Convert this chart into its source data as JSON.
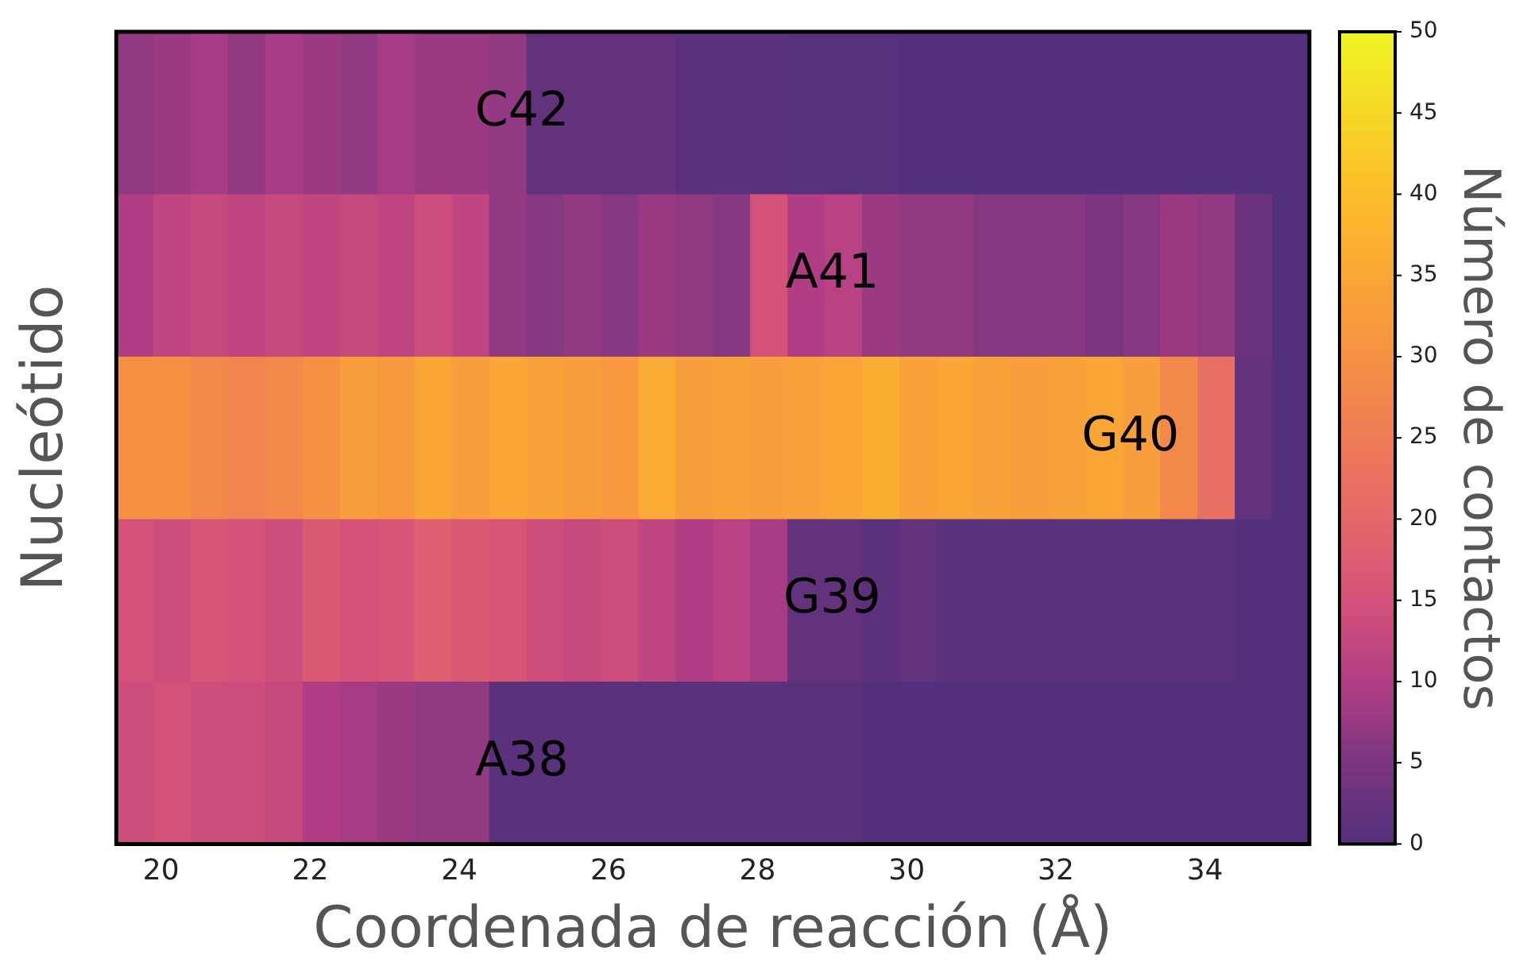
{
  "chart_data": {
    "type": "heatmap",
    "xlabel": "Coordenada de reacción (Å)",
    "ylabel": "Nucleótido",
    "clabel": "Número de contactos",
    "x": [
      19.65,
      20.15,
      20.65,
      21.15,
      21.65,
      22.15,
      22.65,
      23.15,
      23.65,
      24.15,
      24.65,
      25.15,
      25.65,
      26.15,
      26.65,
      27.15,
      27.65,
      28.15,
      28.65,
      29.15,
      29.65,
      30.15,
      30.65,
      31.15,
      31.65,
      32.15,
      32.65,
      33.15,
      33.65,
      34.15,
      34.65,
      35.15
    ],
    "xlim": [
      19.4,
      35.4
    ],
    "xticks": [
      20,
      22,
      24,
      26,
      28,
      30,
      32,
      34
    ],
    "y_categories": [
      "C42",
      "A41",
      "G40",
      "G39",
      "A38"
    ],
    "cells": [
      [
        7,
        8,
        9,
        7,
        9,
        8,
        7,
        9,
        8,
        8,
        7,
        2,
        2,
        2,
        2,
        1,
        1,
        1,
        0.5,
        0.5,
        0.5,
        0,
        0,
        0,
        0,
        0,
        0,
        0,
        0,
        0,
        0,
        0
      ],
      [
        10,
        12,
        13,
        12,
        13,
        12,
        13,
        12,
        14,
        12,
        7,
        6,
        7,
        6,
        8,
        7,
        6,
        15,
        10,
        11,
        8,
        7,
        7,
        6,
        6,
        6,
        5,
        6,
        8,
        7,
        3,
        0
      ],
      [
        30,
        30,
        28,
        27,
        28,
        30,
        33,
        32,
        35,
        33,
        35,
        34,
        33,
        32,
        36,
        33,
        34,
        33,
        34,
        35,
        37,
        34,
        35,
        34,
        33,
        34,
        35,
        33,
        28,
        22,
        2,
        0
      ],
      [
        15,
        14,
        16,
        15,
        14,
        17,
        15,
        16,
        18,
        17,
        16,
        14,
        13,
        14,
        12,
        10,
        11,
        9,
        2,
        2,
        1,
        2,
        1,
        1,
        1,
        1,
        1,
        1,
        1,
        1,
        0,
        0
      ],
      [
        14,
        15,
        14,
        14,
        13,
        10,
        9,
        8,
        7,
        7,
        1,
        1,
        1,
        1,
        1,
        1,
        1,
        1,
        1,
        1,
        0,
        0,
        0,
        0,
        0,
        0,
        0,
        0,
        0,
        0,
        0,
        0
      ]
    ],
    "clim": [
      0,
      50
    ],
    "cticks": [
      0,
      5,
      10,
      15,
      20,
      25,
      30,
      35,
      40,
      45,
      50
    ]
  }
}
